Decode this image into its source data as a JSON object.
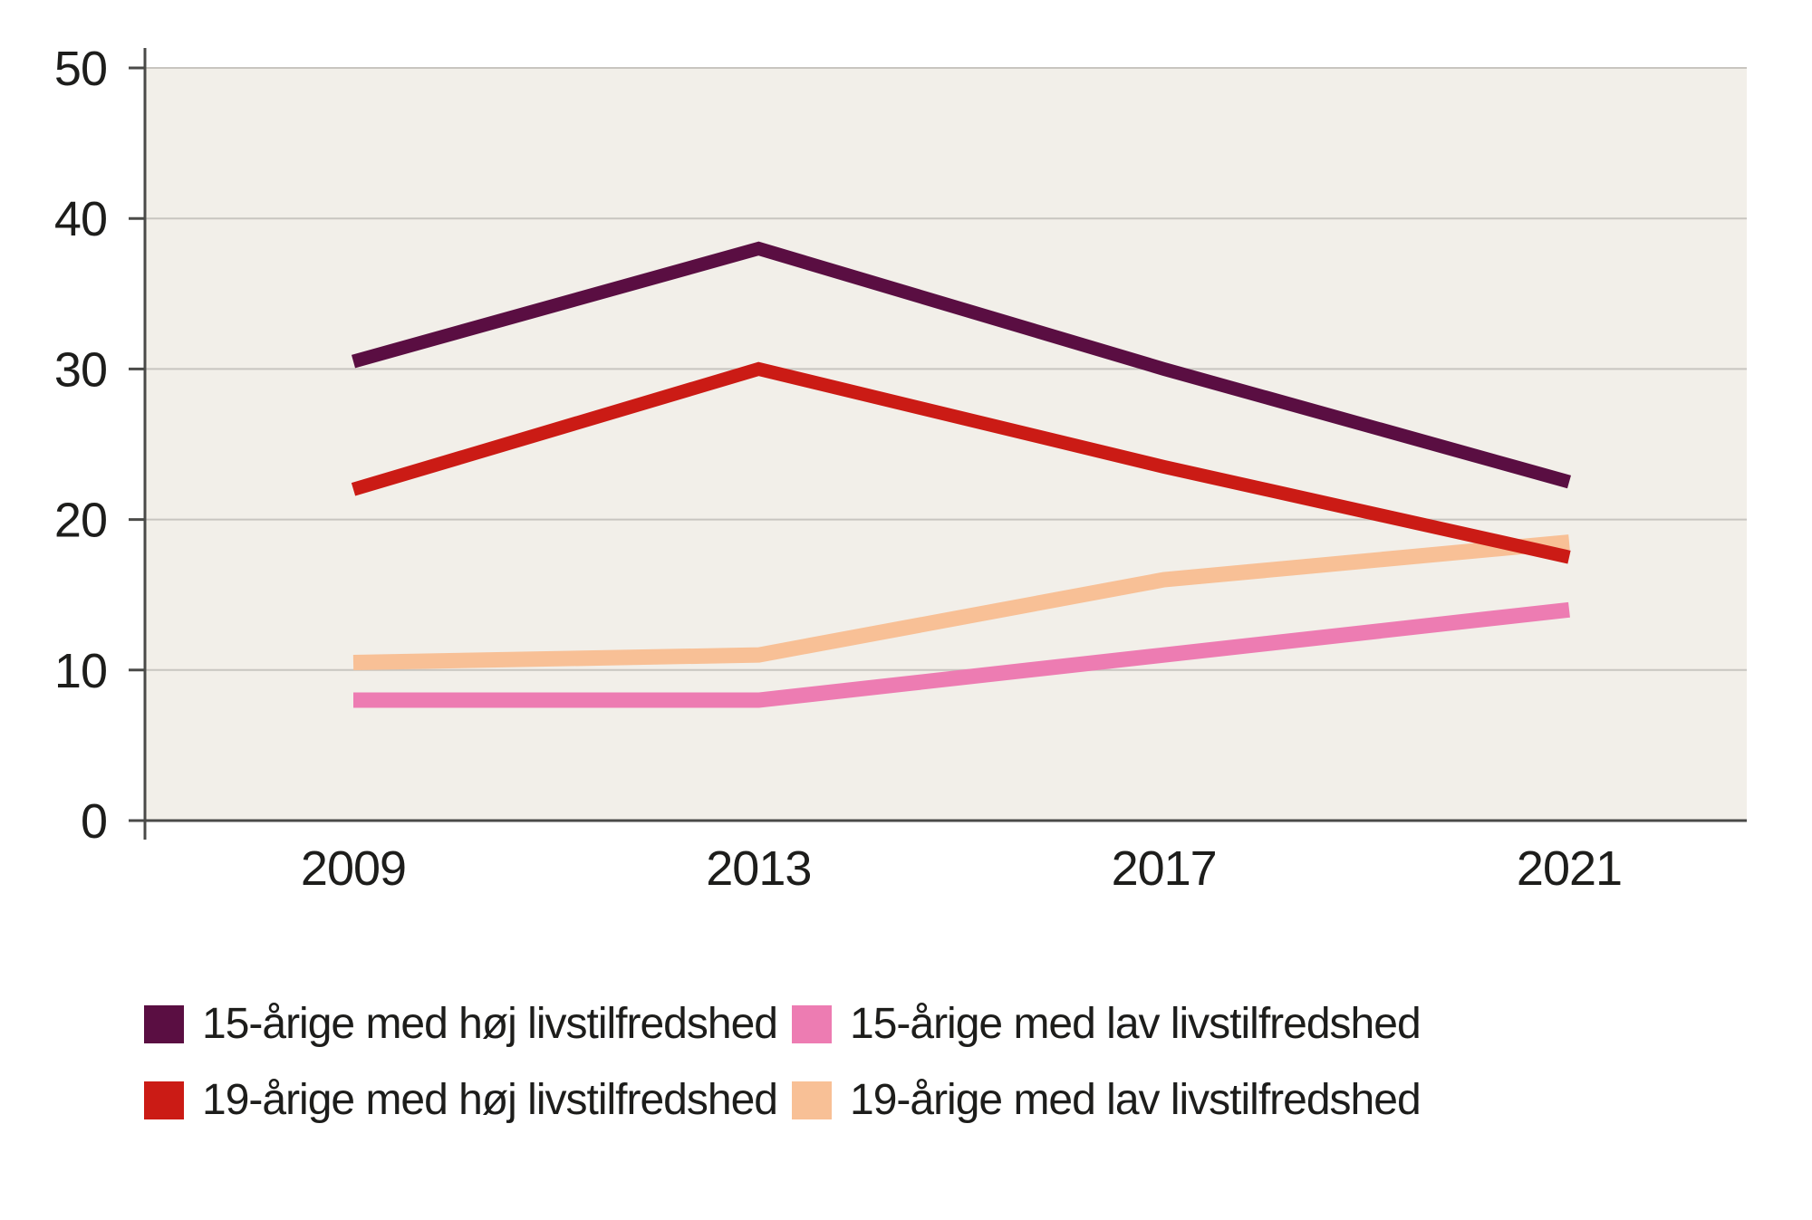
{
  "chart_data": {
    "type": "line",
    "x": [
      "2009",
      "2013",
      "2017",
      "2021"
    ],
    "series": [
      {
        "name": "15-årige med høj livstilfredshed",
        "color": "#5a0e42",
        "width": 15,
        "values": [
          30.5,
          38,
          30,
          22.5
        ]
      },
      {
        "name": "15-årige med lav livstilfredshed",
        "color": "#ed7cb2",
        "width": 17,
        "values": [
          8,
          8,
          11,
          14
        ]
      },
      {
        "name": "19-årige med høj livstilfredshed",
        "color": "#cb1b15",
        "width": 15,
        "values": [
          22,
          30,
          23.5,
          17.5
        ]
      },
      {
        "name": "19-årige med lav livstilfredshed",
        "color": "#f8c096",
        "width": 17,
        "values": [
          10.5,
          11,
          16,
          18.5
        ]
      }
    ],
    "ylim": [
      0,
      50
    ],
    "yticks": [
      0,
      10,
      20,
      30,
      40,
      50
    ],
    "grid": "horizontal",
    "legend_position": "bottom",
    "draw_order": [
      1,
      3,
      2,
      0
    ],
    "plot_bg": "#f2efe9",
    "grid_color": "#c8c5c0",
    "axis_color": "#4a4a48",
    "text_color": "#1d1d1b"
  }
}
